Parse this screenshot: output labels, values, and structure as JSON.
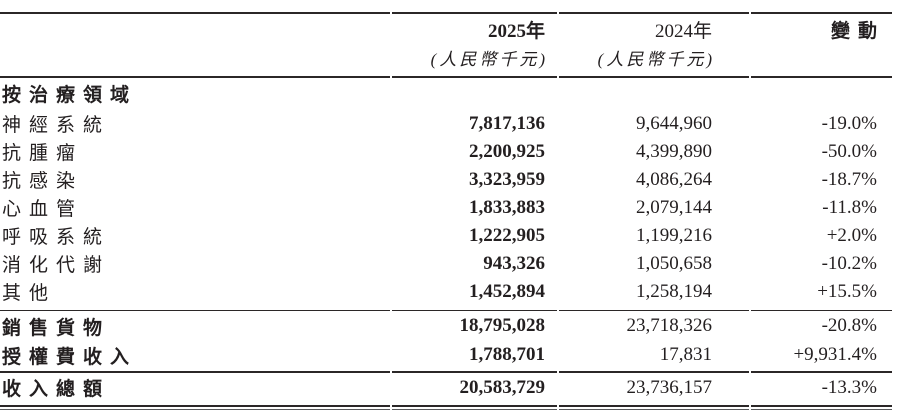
{
  "page": {
    "background": "#ffffff",
    "text_color": "#231f20",
    "rule_color": "#2b2727",
    "bottom_thin_rule_color": "#58595b"
  },
  "table": {
    "header": {
      "col_2025_year": "2025年",
      "col_2025_unit": "(人民幣千元)",
      "col_2024_year": "2024年",
      "col_2024_unit": "(人民幣千元)",
      "col_change": "變動"
    },
    "section_title": "按治療領域",
    "rows": [
      {
        "label": "神經系統",
        "v2025": "7,817,136",
        "v2024": "9,644,960",
        "change": "-19.0%"
      },
      {
        "label": "抗腫瘤",
        "v2025": "2,200,925",
        "v2024": "4,399,890",
        "change": "-50.0%"
      },
      {
        "label": "抗感染",
        "v2025": "3,323,959",
        "v2024": "4,086,264",
        "change": "-18.7%"
      },
      {
        "label": "心血管",
        "v2025": "1,833,883",
        "v2024": "2,079,144",
        "change": "-11.8%"
      },
      {
        "label": "呼吸系統",
        "v2025": "1,222,905",
        "v2024": "1,199,216",
        "change": "+2.0%"
      },
      {
        "label": "消化代謝",
        "v2025": "943,326",
        "v2024": "1,050,658",
        "change": "-10.2%"
      },
      {
        "label": "其他",
        "v2025": "1,452,894",
        "v2024": "1,258,194",
        "change": "+15.5%"
      }
    ],
    "subtotals": [
      {
        "label": "銷售貨物",
        "v2025": "18,795,028",
        "v2024": "23,718,326",
        "change": "-20.8%"
      },
      {
        "label": "授權費收入",
        "v2025": "1,788,701",
        "v2024": "17,831",
        "change": "+9,931.4%"
      }
    ],
    "total": {
      "label": "收入總額",
      "v2025": "20,583,729",
      "v2024": "23,736,157",
      "change": "-13.3%"
    }
  }
}
